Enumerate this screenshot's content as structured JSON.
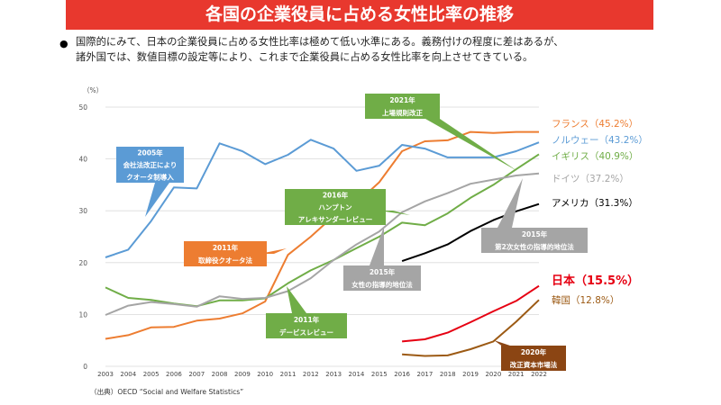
{
  "title": "各国の企業役員に占める女性比率の推移",
  "intro_lines": [
    "国際的にみて、日本の企業役員に占める女性比率は極めて低い水準にある。義務付けの程度に差はあるが、",
    "諸外国では、数値目標の設定等により、これまで企業役員に占める女性比率を向上させてきている。"
  ],
  "source": "（出典）OECD “Social and Welfare Statistics”",
  "colors": {
    "title_bg": "#e8382e",
    "france": "#ed7d31",
    "norway": "#5b9bd5",
    "uk": "#70ad47",
    "germany": "#a5a5a5",
    "usa": "#000000",
    "japan": "#e60012",
    "korea": "#9c5a14",
    "callout_gray": "#a5a5a5",
    "callout_korea": "#8b4513"
  },
  "chart_data": {
    "type": "line",
    "title": "各国の企業役員に占める女性比率の推移",
    "ylabel": "（%）",
    "xlabel": "",
    "ylim": [
      0,
      50
    ],
    "yticks": [
      0,
      10,
      20,
      30,
      40,
      50
    ],
    "x": [
      "2003",
      "2004",
      "2005",
      "2006",
      "2007",
      "2008",
      "2009",
      "2010",
      "2011",
      "2012",
      "2013",
      "2014",
      "2015",
      "2016",
      "2017",
      "2018",
      "2019",
      "2020",
      "2021",
      "2022"
    ],
    "series": [
      {
        "key": "france",
        "name": "フランス",
        "label": "フランス（45.2%）",
        "color": "#ed7d31",
        "values": [
          5.3,
          6,
          7.5,
          7.6,
          8.8,
          9.2,
          10.2,
          12.5,
          21.5,
          25,
          29,
          31.5,
          35.5,
          41.5,
          43.4,
          43.6,
          45.2,
          45,
          45.2,
          45.2
        ]
      },
      {
        "key": "norway",
        "name": "ノルウェー",
        "label": "ノルウェー（43.2%）",
        "color": "#5b9bd5",
        "values": [
          21,
          22.5,
          28,
          34.5,
          34.3,
          43,
          41.5,
          39,
          40.8,
          43.7,
          42,
          37.7,
          38.7,
          42.7,
          42,
          40.3,
          40.3,
          40.3,
          41.5,
          43.2
        ]
      },
      {
        "key": "uk",
        "name": "イギリス",
        "label": "イギリス（40.9%）",
        "color": "#70ad47",
        "values": [
          15.2,
          13.2,
          12.8,
          12.1,
          11.6,
          12.7,
          12.7,
          13.1,
          16,
          18.5,
          20.5,
          22.8,
          25,
          27.7,
          27.2,
          29.5,
          32.5,
          35,
          38,
          40.9
        ]
      },
      {
        "key": "germany",
        "name": "ドイツ",
        "label": "ドイツ（37.2%）",
        "color": "#a5a5a5",
        "values": [
          9.9,
          11.7,
          12.4,
          12,
          11.5,
          13.5,
          13,
          13.2,
          14.5,
          17,
          20.5,
          23.5,
          26,
          29.7,
          31.8,
          33.4,
          35.2,
          36,
          36.8,
          37.2
        ]
      },
      {
        "key": "usa",
        "name": "アメリカ",
        "label": "アメリカ（31.3%）",
        "color": "#000000",
        "values": [
          null,
          null,
          null,
          null,
          null,
          null,
          null,
          null,
          null,
          null,
          null,
          null,
          null,
          20.3,
          21.8,
          23.5,
          26.1,
          28.2,
          29.9,
          31.3
        ]
      },
      {
        "key": "japan",
        "name": "日本",
        "label": "日本（15.5%）",
        "color": "#e60012",
        "values": [
          null,
          null,
          null,
          null,
          null,
          null,
          null,
          null,
          null,
          null,
          null,
          null,
          null,
          4.8,
          5.2,
          6.5,
          8.5,
          10.6,
          12.6,
          15.5
        ]
      },
      {
        "key": "korea",
        "name": "韓国",
        "label": "韓国（12.8%）",
        "color": "#9c5a14",
        "values": [
          null,
          null,
          null,
          null,
          null,
          null,
          null,
          null,
          null,
          null,
          null,
          null,
          null,
          2.3,
          2,
          2.1,
          3.3,
          4.8,
          8.6,
          12.8
        ]
      }
    ],
    "annotations": [
      {
        "key": "a2005",
        "lines": [
          "2005年",
          "会社法改正により",
          "クオータ制導入"
        ],
        "color": "#5b9bd5"
      },
      {
        "key": "a2011fr",
        "lines": [
          "2011年",
          "取締役クオータ法"
        ],
        "color": "#ed7d31"
      },
      {
        "key": "a2011uk",
        "lines": [
          "2011年",
          "デービスレビュー"
        ],
        "color": "#70ad47"
      },
      {
        "key": "a2016",
        "lines": [
          "2016年",
          "ハンプトン",
          "アレキサンダーレビュー"
        ],
        "color": "#70ad47"
      },
      {
        "key": "a2021",
        "lines": [
          "2021年",
          "上場規則改正"
        ],
        "color": "#70ad47"
      },
      {
        "key": "a2015a",
        "lines": [
          "2015年",
          "女性の指導的地位法"
        ],
        "color": "#a5a5a5"
      },
      {
        "key": "a2015b",
        "lines": [
          "2015年",
          "第2次女性の指導的地位法"
        ],
        "color": "#a5a5a5"
      },
      {
        "key": "a2020",
        "lines": [
          "2020年",
          "改正資本市場法"
        ],
        "color": "#8b4513"
      }
    ]
  }
}
